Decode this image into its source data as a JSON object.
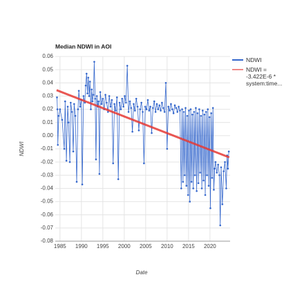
{
  "chart_data": {
    "type": "line",
    "title": "Median NDWI in AOI",
    "xlabel": "Date",
    "ylabel": "NDWI",
    "xlim": [
      1983.9,
      2024.7
    ],
    "xticks": [
      1985,
      1990,
      1995,
      2000,
      2005,
      2010,
      2015,
      2020
    ],
    "ylim": [
      -0.08,
      0.06
    ],
    "yticks": [
      0.06,
      0.05,
      0.04,
      0.03,
      0.02,
      0.01,
      {
        "value": 0,
        "label": "0.00"
      },
      -0.01,
      -0.02,
      -0.03,
      -0.04,
      -0.05,
      -0.06,
      -0.07,
      -0.08
    ],
    "grid": true,
    "legend": "right",
    "series": [
      {
        "name": "NDWI",
        "color": "#3366cc",
        "x": [
          1984.3,
          1984.4,
          1984.5,
          1984.7,
          1985.0,
          1985.5,
          1986.0,
          1986.2,
          1986.5,
          1986.8,
          1987.0,
          1987.3,
          1987.5,
          1987.8,
          1988.1,
          1988.3,
          1988.6,
          1988.9,
          1989.2,
          1989.4,
          1989.7,
          1990.0,
          1990.2,
          1990.5,
          1990.8,
          1991.0,
          1991.2,
          1991.4,
          1991.6,
          1991.8,
          1992.0,
          1992.2,
          1992.4,
          1992.6,
          1992.8,
          1993.0,
          1993.2,
          1993.4,
          1993.6,
          1993.8,
          1994.0,
          1994.2,
          1994.4,
          1994.7,
          1995.0,
          1995.3,
          1995.6,
          1995.9,
          1996.2,
          1996.5,
          1996.8,
          1997.1,
          1997.4,
          1997.7,
          1998.0,
          1998.3,
          1998.6,
          1998.9,
          1999.2,
          1999.5,
          1999.8,
          2000.1,
          2000.4,
          2000.7,
          2001.0,
          2001.3,
          2001.6,
          2001.9,
          2002.2,
          2002.5,
          2002.8,
          2003.1,
          2003.4,
          2003.7,
          2004.0,
          2004.3,
          2004.6,
          2004.9,
          2005.2,
          2005.5,
          2005.8,
          2006.1,
          2006.4,
          2006.7,
          2007.0,
          2007.3,
          2007.6,
          2007.9,
          2008.2,
          2008.5,
          2008.8,
          2009.1,
          2009.4,
          2009.7,
          2010.0,
          2010.3,
          2010.6,
          2010.9,
          2011.2,
          2011.5,
          2011.8,
          2012.1,
          2012.4,
          2012.7,
          2013.0,
          2013.3,
          2013.5,
          2013.7,
          2013.9,
          2014.1,
          2014.3,
          2014.5,
          2014.7,
          2014.9,
          2015.1,
          2015.3,
          2015.5,
          2015.7,
          2015.9,
          2016.1,
          2016.3,
          2016.5,
          2016.7,
          2016.9,
          2017.1,
          2017.3,
          2017.5,
          2017.7,
          2017.9,
          2018.1,
          2018.3,
          2018.5,
          2018.7,
          2018.9,
          2019.1,
          2019.3,
          2019.5,
          2019.7,
          2019.9,
          2020.1,
          2020.3,
          2020.5,
          2020.7,
          2020.9,
          2021.1,
          2021.3,
          2021.6,
          2021.9,
          2022.2,
          2022.4,
          2022.6,
          2022.9,
          2023.2,
          2023.5,
          2023.8,
          2024.0,
          2024.2,
          2024.4
        ],
        "values": [
          0.029,
          0.02,
          -0.007,
          0.015,
          0.02,
          0.012,
          -0.01,
          0.026,
          -0.019,
          0.022,
          0.01,
          -0.02,
          0.025,
          0.018,
          -0.012,
          0.024,
          0.015,
          -0.035,
          0.02,
          0.034,
          0.022,
          0.027,
          -0.037,
          0.03,
          0.025,
          0.038,
          0.047,
          0.032,
          0.044,
          0.03,
          0.041,
          0.02,
          0.035,
          0.026,
          0.031,
          0.056,
          0.028,
          -0.018,
          0.03,
          0.022,
          0.026,
          -0.029,
          0.033,
          0.024,
          0.028,
          0.02,
          0.031,
          0.025,
          0.018,
          0.03,
          0.022,
          0.027,
          -0.021,
          0.024,
          0.019,
          0.029,
          -0.033,
          0.025,
          0.02,
          0.028,
          0.022,
          0.03,
          0.025,
          0.053,
          0.018,
          0.026,
          0.021,
          0.003,
          0.024,
          0.019,
          0.028,
          0.022,
          0.004,
          0.02,
          0.025,
          0.018,
          -0.021,
          0.022,
          0.02,
          0.027,
          0.019,
          0.022,
          0.002,
          0.021,
          0.026,
          0.018,
          0.024,
          0.02,
          0.023,
          0.019,
          0.025,
          0.021,
          0.018,
          0.04,
          -0.01,
          0.022,
          0.019,
          0.024,
          0.02,
          0.017,
          0.023,
          0.021,
          0.018,
          0.022,
          0.019,
          -0.04,
          0.02,
          -0.035,
          0.018,
          -0.03,
          0.021,
          -0.038,
          0.015,
          -0.045,
          0.019,
          -0.05,
          0.02,
          -0.035,
          0.016,
          -0.04,
          0.018,
          -0.03,
          0.021,
          -0.042,
          0.017,
          -0.036,
          0.02,
          -0.028,
          0.015,
          -0.04,
          0.019,
          -0.034,
          0.016,
          -0.045,
          0.018,
          -0.03,
          0.02,
          -0.038,
          0.014,
          -0.055,
          0.017,
          -0.032,
          0.021,
          -0.041,
          -0.025,
          -0.02,
          -0.028,
          -0.022,
          -0.03,
          -0.068,
          -0.024,
          -0.052,
          -0.027,
          -0.02,
          -0.04,
          -0.015,
          -0.025,
          -0.012
        ]
      },
      {
        "name": "NDWI = -3.422E-6 * system:time...",
        "color": "#e53935",
        "x": [
          1984.2,
          2024.5
        ],
        "values": [
          0.0345,
          -0.0165
        ]
      }
    ]
  }
}
